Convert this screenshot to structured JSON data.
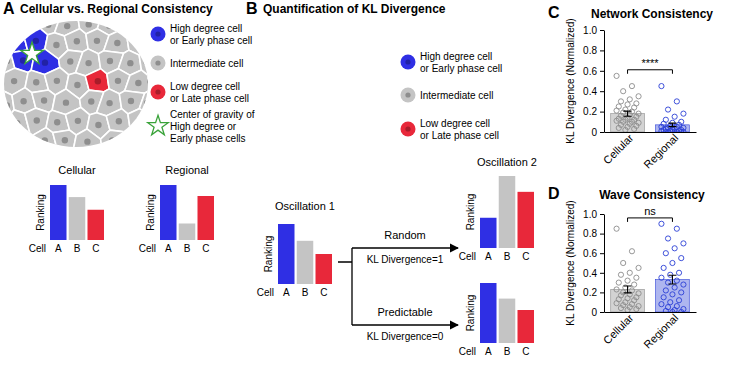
{
  "panels": {
    "A": {
      "letter": "A",
      "title": "Cellular vs. Regional Consistency",
      "legend": [
        {
          "label": [
            "High degree cell",
            "or Early phase cell"
          ],
          "color": "#2f2fe4"
        },
        {
          "label": [
            "Intermediate cell"
          ],
          "color": "#c4c4c4"
        },
        {
          "label": [
            "Low degree cell",
            "or Late phase cell"
          ],
          "color": "#e8283a"
        },
        {
          "label": [
            "Center of gravity of",
            "High degree or",
            "Early phase cells"
          ],
          "marker": "star",
          "color": "#3aa33a"
        }
      ],
      "charts": [
        {
          "title": "Cellular",
          "ylabel": "Ranking",
          "xlabel": "Cell",
          "categories": [
            "A",
            "B",
            "C"
          ],
          "values": [
            1,
            0.78,
            0.55
          ]
        },
        {
          "title": "Regional",
          "ylabel": "Ranking",
          "xlabel": "Cell",
          "categories": [
            "A",
            "B",
            "C"
          ],
          "values": [
            1,
            0.3,
            0.8
          ]
        }
      ]
    },
    "B": {
      "letter": "B",
      "title": "Quantification of KL Divergence",
      "legend": [
        {
          "label": [
            "High degree cell",
            "or Early phase cell"
          ],
          "color": "#2f2fe4"
        },
        {
          "label": [
            "Intermediate cell"
          ],
          "color": "#c4c4c4"
        },
        {
          "label": [
            "Low degree cell",
            "or Late phase cell"
          ],
          "color": "#e8283a"
        }
      ],
      "charts": [
        {
          "title": "Oscillation 1",
          "ylabel": "Ranking",
          "xlabel": "Cell",
          "categories": [
            "A",
            "B",
            "C"
          ],
          "values": [
            1,
            0.72,
            0.5
          ]
        },
        {
          "title": "Oscillation 2",
          "ylabel": "Ranking",
          "xlabel": "Cell",
          "categories": [
            "A",
            "B",
            "C"
          ],
          "values": [
            0.42,
            1,
            0.78
          ]
        },
        {
          "ylabel": "Ranking",
          "xlabel": "Cell",
          "categories": [
            "A",
            "B",
            "C"
          ],
          "values": [
            1,
            0.74,
            0.55
          ]
        }
      ],
      "arrows": [
        {
          "label": "Random",
          "note": "KL Divergence=1"
        },
        {
          "label": "Predictable",
          "note": "KL Divergence=0"
        }
      ]
    }
  },
  "chart_data": [
    {
      "type": "bar",
      "panel_label": "C",
      "title": "Network Consistency",
      "ylabel": "KL Divergence (Normalized)",
      "categories": [
        "Cellular",
        "Regional"
      ],
      "values": [
        0.18,
        0.07
      ],
      "errors": [
        0.025,
        0.017
      ],
      "colors": [
        "#8c8c8c",
        "#2b3fd6"
      ],
      "significance": "****",
      "points": [
        [
          0.55,
          0.45,
          0.4,
          0.35,
          0.32,
          0.3,
          0.28,
          0.27,
          0.25,
          0.24,
          0.22,
          0.21,
          0.2,
          0.19,
          0.18,
          0.17,
          0.16,
          0.15,
          0.14,
          0.13,
          0.12,
          0.12,
          0.11,
          0.1,
          0.1,
          0.09,
          0.08,
          0.07,
          0.06,
          0.05,
          0.04,
          0.03,
          0.02
        ],
        [
          0.45,
          0.3,
          0.22,
          0.18,
          0.15,
          0.12,
          0.1,
          0.09,
          0.08,
          0.07,
          0.06,
          0.05,
          0.05,
          0.04,
          0.04,
          0.03,
          0.03,
          0.02,
          0.02,
          0.02,
          0.01,
          0.01,
          0.01,
          0,
          0,
          0,
          0,
          0,
          0,
          0
        ]
      ],
      "ylim": [
        0,
        1
      ],
      "yticks": [
        0,
        0.2,
        0.4,
        0.6,
        0.8,
        {
          "value": 1,
          "label": "1.0"
        }
      ]
    },
    {
      "type": "bar",
      "panel_label": "D",
      "title": "Wave Consistency",
      "ylabel": "KL Divergence (Normalized)",
      "categories": [
        "Cellular",
        "Regional"
      ],
      "values": [
        0.23,
        0.33
      ],
      "errors": [
        0.035,
        0.045
      ],
      "colors": [
        "#8c8c8c",
        "#2b3fd6"
      ],
      "significance": "ns",
      "points": [
        [
          0.85,
          0.62,
          0.5,
          0.45,
          0.4,
          0.38,
          0.35,
          0.32,
          0.3,
          0.28,
          0.25,
          0.23,
          0.22,
          0.2,
          0.19,
          0.18,
          0.17,
          0.15,
          0.14,
          0.13,
          0.12,
          0.1,
          0.09,
          0.08,
          0.07,
          0.06,
          0.05,
          0.04,
          0.03,
          0.02
        ],
        [
          0.9,
          0.85,
          0.75,
          0.7,
          0.65,
          0.6,
          0.55,
          0.5,
          0.45,
          0.4,
          0.38,
          0.35,
          0.32,
          0.3,
          0.28,
          0.25,
          0.22,
          0.2,
          0.18,
          0.15,
          0.12,
          0.1,
          0.08,
          0.06,
          0.05,
          0.03,
          0.02,
          0.01,
          0,
          0
        ]
      ],
      "ylim": [
        0,
        1
      ],
      "yticks": [
        0,
        0.2,
        0.4,
        0.6,
        0.8,
        {
          "value": 1,
          "label": "1.0"
        }
      ]
    }
  ]
}
